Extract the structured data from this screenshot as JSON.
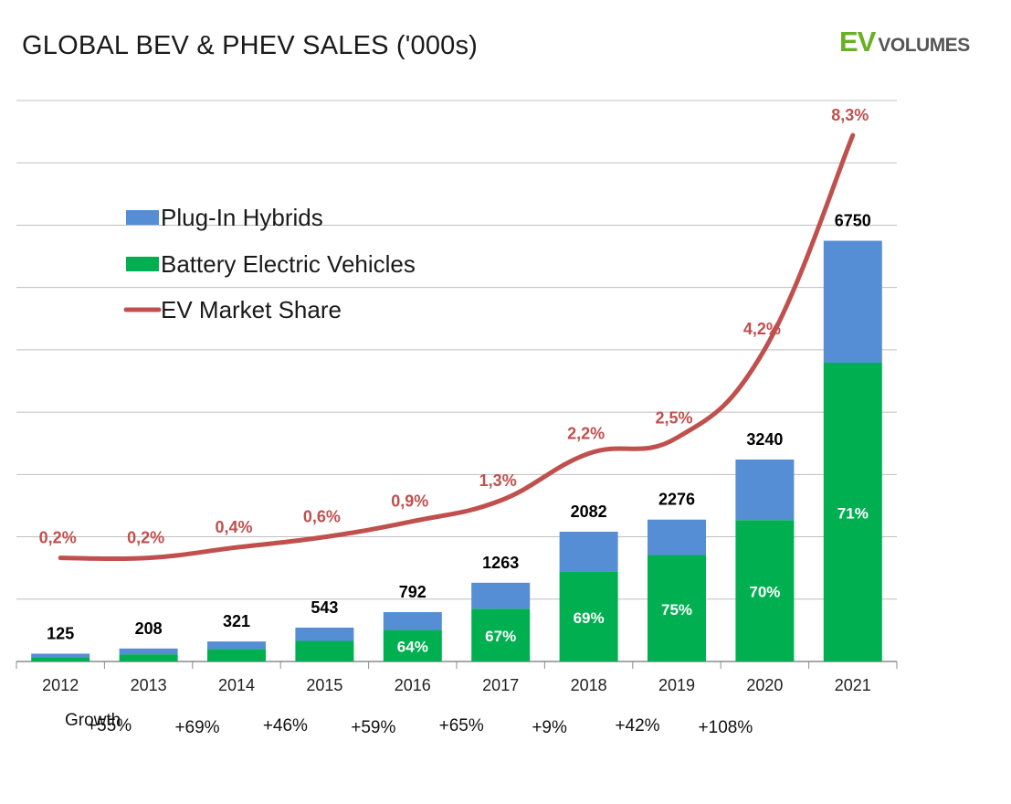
{
  "title": "GLOBAL BEV & PHEV SALES ('000s)",
  "logo": {
    "ev": "EV",
    "volumes": "VOLUMES",
    "ev_color": "#6ab023",
    "volumes_color": "#555555"
  },
  "colors": {
    "phev": "#558ed5",
    "bev": "#00b050",
    "share": "#c0504d",
    "grid": "#bfbfbf"
  },
  "chart_data": {
    "type": "bar",
    "stacked": true,
    "categories": [
      "2012",
      "2013",
      "2014",
      "2015",
      "2016",
      "2017",
      "2018",
      "2019",
      "2020",
      "2021"
    ],
    "totals": [
      125,
      208,
      321,
      543,
      792,
      1263,
      2082,
      2276,
      3240,
      6750
    ],
    "total_labels": [
      "125",
      "208",
      "321",
      "543",
      "792",
      "1263",
      "2082",
      "2276",
      "3240",
      "6750"
    ],
    "series": [
      {
        "name": "Battery Electric Vehicles",
        "values": [
          65,
          115,
          200,
          330,
          507,
          846,
          1437,
          1707,
          2268,
          4793
        ]
      },
      {
        "name": "Plug-In Hybrids",
        "values": [
          60,
          93,
          121,
          213,
          285,
          417,
          645,
          569,
          972,
          1957
        ]
      }
    ],
    "bev_share_labels": [
      "",
      "",
      "",
      "",
      "64%",
      "67%",
      "69%",
      "75%",
      "70%",
      "71%"
    ],
    "line": {
      "name": "EV Market Share",
      "values": [
        0.2,
        0.2,
        0.4,
        0.6,
        0.9,
        1.3,
        2.2,
        2.5,
        4.2,
        8.3
      ],
      "labels": [
        "0,2%",
        "0,2%",
        "0,4%",
        "0,6%",
        "0,9%",
        "1,3%",
        "2,2%",
        "2,5%",
        "4,2%",
        "8,3%"
      ]
    },
    "legend": {
      "position": "top-left",
      "items": [
        "Plug-In Hybrids",
        "Battery Electric Vehicles",
        "EV Market Share"
      ]
    },
    "ylim": [
      0,
      9000
    ],
    "grid": true,
    "growth_label": "Growth",
    "growth": [
      "+55%",
      "+69%",
      "+46%",
      "+59%",
      "+65%",
      "+9%",
      "+42%",
      "+108%"
    ]
  }
}
